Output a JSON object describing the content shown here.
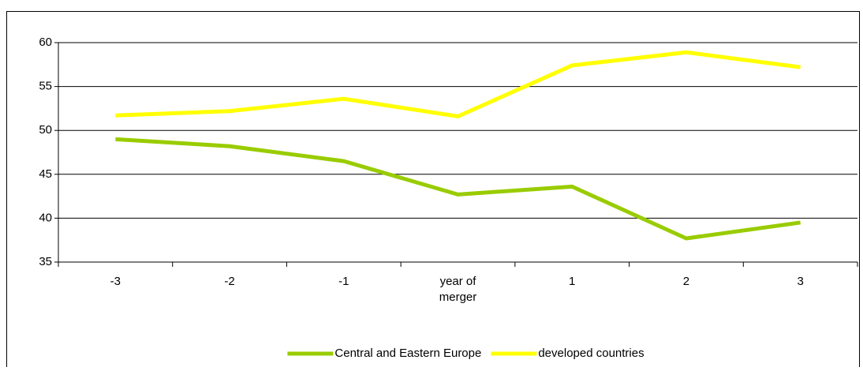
{
  "chart_data": {
    "type": "line",
    "categories": [
      "-3",
      "-2",
      "-1",
      "year of merger",
      "1",
      "2",
      "3"
    ],
    "series": [
      {
        "name": "Central and Eastern Europe",
        "color": "#99cc00",
        "values": [
          49.0,
          48.2,
          46.5,
          42.7,
          43.6,
          37.7,
          39.5
        ]
      },
      {
        "name": "developed countries",
        "color": "#ffff00",
        "values": [
          51.7,
          52.2,
          53.6,
          51.6,
          57.4,
          58.9,
          57.2
        ]
      }
    ],
    "ylim": [
      35,
      60
    ],
    "yticks": [
      35,
      40,
      45,
      50,
      55,
      60
    ],
    "grid": true,
    "legend": "bottom"
  }
}
